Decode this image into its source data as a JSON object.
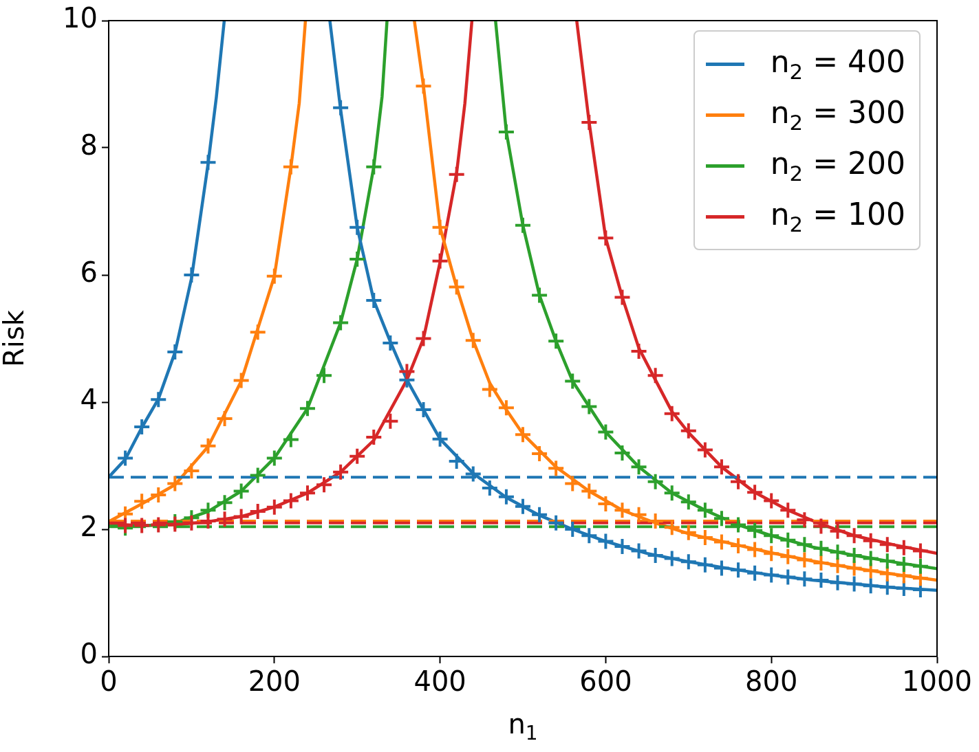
{
  "chart_data": {
    "type": "line",
    "xlabel": "n$_{1}$",
    "ylabel": "Risk",
    "xlim": [
      0,
      1000
    ],
    "xticks": [
      0,
      200,
      400,
      600,
      800,
      1000
    ],
    "ylim": [
      0,
      10
    ],
    "yticks": [
      0,
      2,
      4,
      6,
      8,
      10
    ],
    "grid": false,
    "legend": "top right",
    "line_style": "solid",
    "series": [
      {
        "name": "n$_{2}$ = 400",
        "type": "line",
        "marker": "none",
        "color": "#1f77b4",
        "x": [
          0,
          20,
          40,
          60,
          80,
          100,
          120,
          130,
          139.5,
          200,
          267,
          280,
          300,
          320,
          340,
          360,
          380,
          400,
          440,
          480,
          520,
          560,
          600,
          650,
          700,
          750,
          800,
          850,
          900,
          950,
          1000
        ],
        "values": [
          2.82,
          3.1,
          3.6,
          4.05,
          4.78,
          5.95,
          7.75,
          8.8,
          10,
          null,
          10,
          8.6,
          6.75,
          5.6,
          4.95,
          4.35,
          3.88,
          3.42,
          2.88,
          2.5,
          2.22,
          2.0,
          1.81,
          1.62,
          1.49,
          1.38,
          1.28,
          1.2,
          1.14,
          1.08,
          1.04
        ]
      },
      {
        "name": "n$_{2}$ = 300",
        "type": "line",
        "marker": "none",
        "color": "#ff7f0e",
        "x": [
          0,
          40,
          80,
          120,
          160,
          200,
          220,
          230,
          237.5,
          300,
          369,
          380,
          400,
          420,
          440,
          460,
          480,
          500,
          540,
          580,
          620,
          660,
          700,
          750,
          800,
          850,
          900,
          950,
          1000
        ],
        "values": [
          2.12,
          2.4,
          2.7,
          3.3,
          4.33,
          5.98,
          7.7,
          8.7,
          10,
          null,
          10,
          8.97,
          6.75,
          5.81,
          4.97,
          4.3,
          3.88,
          3.5,
          2.98,
          2.6,
          2.3,
          2.1,
          1.93,
          1.78,
          1.63,
          1.5,
          1.39,
          1.29,
          1.2
        ]
      },
      {
        "name": "n$_{2}$ = 200",
        "type": "line",
        "marker": "none",
        "color": "#2ca02c",
        "x": [
          0,
          40,
          80,
          120,
          160,
          200,
          240,
          280,
          300,
          320,
          330,
          336,
          400,
          467,
          480,
          500,
          520,
          540,
          560,
          600,
          640,
          680,
          720,
          760,
          800,
          850,
          900,
          950,
          1000
        ],
        "values": [
          2.05,
          2.05,
          2.1,
          2.28,
          2.6,
          3.12,
          3.9,
          5.25,
          6.25,
          7.7,
          8.8,
          10,
          null,
          10,
          8.25,
          6.78,
          5.68,
          4.96,
          4.33,
          3.53,
          2.98,
          2.57,
          2.3,
          2.07,
          1.9,
          1.72,
          1.59,
          1.48,
          1.38
        ]
      },
      {
        "name": "n$_{2}$ = 100",
        "type": "line",
        "marker": "none",
        "color": "#d62728",
        "x": [
          0,
          40,
          80,
          120,
          160,
          200,
          240,
          280,
          320,
          360,
          380,
          400,
          420,
          430,
          438.5,
          500,
          565,
          580,
          600,
          620,
          640,
          660,
          680,
          700,
          740,
          780,
          820,
          860,
          900,
          950,
          1000
        ],
        "values": [
          2.08,
          2.06,
          2.07,
          2.12,
          2.2,
          2.35,
          2.57,
          2.9,
          3.4,
          4.35,
          5.0,
          6.2,
          7.6,
          8.7,
          10,
          null,
          10,
          8.4,
          6.58,
          5.65,
          4.85,
          4.35,
          3.85,
          3.52,
          2.98,
          2.58,
          2.3,
          2.08,
          1.9,
          1.75,
          1.62
        ]
      },
      {
        "type": "scatter",
        "marker": "cross",
        "color": "#1f77b4",
        "x": [
          20,
          40,
          60,
          80,
          100,
          120,
          140,
          160,
          180,
          200,
          220,
          240,
          260,
          280,
          300,
          320,
          340,
          360,
          380,
          400,
          420,
          440,
          460,
          480,
          500,
          520,
          540,
          560,
          580,
          600,
          620,
          640,
          660,
          680,
          700,
          720,
          740,
          760,
          780,
          800,
          820,
          840,
          860,
          880,
          900,
          920,
          940,
          960,
          980
        ],
        "values": [
          3.12,
          3.61,
          4.04,
          4.79,
          6.0,
          7.77,
          null,
          null,
          null,
          null,
          null,
          null,
          null,
          8.63,
          6.75,
          5.6,
          4.93,
          4.35,
          3.88,
          3.42,
          3.07,
          2.87,
          2.65,
          2.51,
          2.36,
          2.23,
          2.1,
          2.0,
          1.9,
          1.81,
          1.73,
          1.66,
          1.59,
          1.54,
          1.49,
          1.44,
          1.39,
          1.36,
          1.31,
          1.28,
          1.25,
          1.22,
          1.2,
          1.16,
          1.14,
          1.11,
          1.09,
          1.07,
          1.05
        ]
      },
      {
        "type": "scatter",
        "marker": "cross",
        "color": "#ff7f0e",
        "x": [
          20,
          40,
          60,
          80,
          100,
          120,
          140,
          160,
          180,
          200,
          220,
          240,
          260,
          280,
          300,
          320,
          340,
          360,
          380,
          400,
          420,
          440,
          460,
          480,
          500,
          520,
          540,
          560,
          580,
          600,
          620,
          640,
          660,
          680,
          700,
          720,
          740,
          760,
          780,
          800,
          820,
          840,
          860,
          880,
          900,
          920,
          940,
          960,
          980
        ],
        "values": [
          2.24,
          2.44,
          2.54,
          2.72,
          2.92,
          3.31,
          3.74,
          4.34,
          5.1,
          5.98,
          7.7,
          null,
          null,
          null,
          null,
          null,
          null,
          null,
          8.97,
          6.75,
          5.81,
          4.97,
          4.2,
          3.91,
          3.49,
          3.19,
          2.96,
          2.72,
          2.6,
          2.4,
          2.3,
          2.23,
          2.13,
          2.03,
          1.95,
          1.87,
          1.8,
          1.74,
          1.68,
          1.62,
          1.57,
          1.52,
          1.47,
          1.43,
          1.39,
          1.35,
          1.3,
          1.27,
          1.23
        ]
      },
      {
        "type": "scatter",
        "marker": "cross",
        "color": "#2ca02c",
        "x": [
          20,
          40,
          60,
          80,
          100,
          120,
          140,
          160,
          180,
          200,
          220,
          240,
          260,
          280,
          300,
          320,
          340,
          360,
          380,
          400,
          420,
          440,
          460,
          480,
          500,
          520,
          540,
          560,
          580,
          600,
          620,
          640,
          660,
          680,
          700,
          720,
          740,
          760,
          780,
          800,
          820,
          840,
          860,
          880,
          900,
          920,
          940,
          960,
          980
        ],
        "values": [
          2.02,
          null,
          null,
          2.12,
          2.18,
          2.3,
          2.42,
          2.6,
          2.85,
          3.12,
          3.41,
          3.9,
          4.42,
          5.25,
          6.25,
          7.7,
          null,
          null,
          null,
          null,
          null,
          null,
          null,
          8.25,
          6.78,
          5.68,
          4.96,
          4.33,
          3.93,
          3.53,
          3.2,
          2.98,
          2.75,
          2.57,
          2.43,
          2.3,
          2.17,
          2.07,
          1.98,
          1.9,
          1.83,
          1.76,
          1.7,
          1.64,
          1.59,
          1.54,
          1.5,
          1.45,
          1.42
        ]
      },
      {
        "type": "scatter",
        "marker": "cross",
        "color": "#d62728",
        "x": [
          20,
          40,
          60,
          80,
          100,
          120,
          140,
          160,
          180,
          200,
          220,
          240,
          260,
          280,
          300,
          320,
          340,
          360,
          380,
          400,
          420,
          440,
          460,
          480,
          500,
          520,
          540,
          560,
          580,
          600,
          620,
          640,
          660,
          680,
          700,
          720,
          740,
          760,
          780,
          800,
          820,
          840,
          860,
          880,
          900,
          920,
          940,
          960,
          980
        ],
        "values": [
          2.06,
          2.06,
          2.07,
          2.08,
          2.1,
          2.13,
          2.16,
          2.2,
          2.28,
          2.35,
          2.45,
          2.57,
          2.7,
          2.9,
          3.15,
          3.45,
          3.7,
          4.48,
          5.0,
          6.22,
          7.58,
          null,
          null,
          null,
          null,
          null,
          null,
          null,
          8.4,
          6.58,
          5.65,
          4.8,
          4.42,
          3.82,
          3.55,
          3.25,
          2.98,
          2.75,
          2.58,
          2.45,
          2.3,
          2.15,
          2.05,
          1.97,
          1.9,
          1.82,
          1.76,
          1.71,
          1.66
        ]
      }
    ],
    "ref_lines": [
      {
        "axis": "y",
        "value": 2.82,
        "color": "#1f77b4",
        "line_style": "dashed"
      },
      {
        "axis": "y",
        "value": 2.13,
        "color": "#ff7f0e",
        "line_style": "dashed"
      },
      {
        "axis": "y",
        "value": 2.1,
        "color": "#d62728",
        "line_style": "dashed"
      },
      {
        "axis": "y",
        "value": 2.04,
        "color": "#2ca02c",
        "line_style": "dashed"
      }
    ]
  }
}
